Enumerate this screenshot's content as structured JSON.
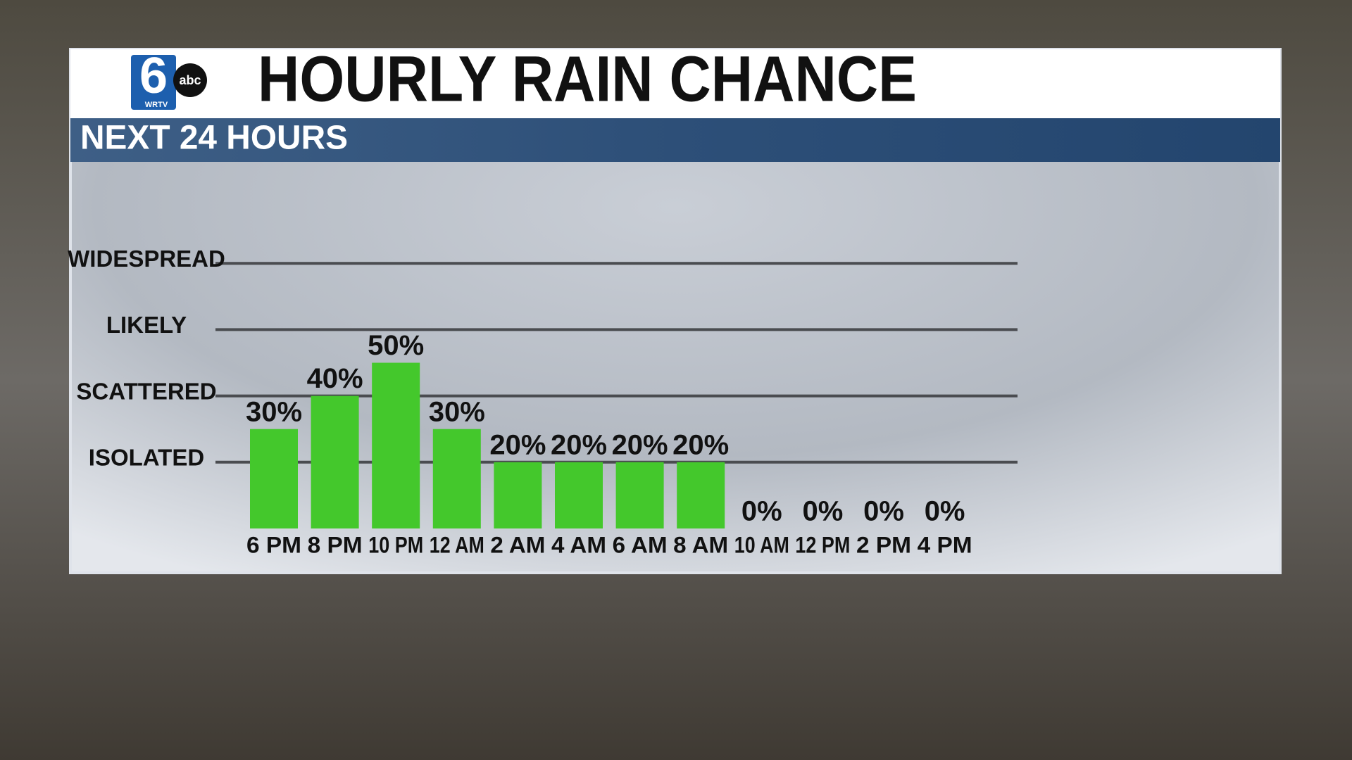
{
  "logo": {
    "number": "6",
    "network": "abc",
    "station": "WRTV"
  },
  "chart_data": {
    "type": "bar",
    "title": "HOURLY RAIN CHANCE",
    "subtitle": "NEXT 24 HOURS",
    "categories": [
      "6 PM",
      "8 PM",
      "10 PM",
      "12 AM",
      "2 AM",
      "4 AM",
      "6 AM",
      "8 AM",
      "10 AM",
      "12 PM",
      "2 PM",
      "4 PM"
    ],
    "values": [
      30,
      40,
      50,
      30,
      20,
      20,
      20,
      20,
      0,
      0,
      0,
      0
    ],
    "value_labels": [
      "30%",
      "40%",
      "50%",
      "30%",
      "20%",
      "20%",
      "20%",
      "20%",
      "0%",
      "0%",
      "0%",
      "0%"
    ],
    "color": "#44c82c",
    "ylim": [
      0,
      100
    ],
    "yticks": [
      {
        "value": 20,
        "label": "ISOLATED"
      },
      {
        "value": 40,
        "label": "SCATTERED"
      },
      {
        "value": 60,
        "label": "LIKELY"
      },
      {
        "value": 80,
        "label": "WIDESPREAD"
      }
    ],
    "grid": true
  }
}
